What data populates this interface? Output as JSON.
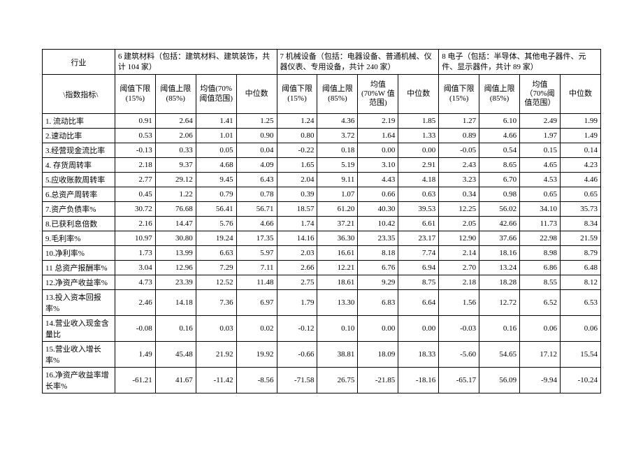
{
  "header": {
    "industry_label": "行业",
    "metric_label": "\\指数指标\\",
    "groups": [
      "6 建筑材料（包括：建筑材料、建筑装饰，共计 104 家）",
      "7 机械设备（包括：电器设备、普通机械、仪器仪表、专用设备，共计 240 家）",
      "8 电子（包括：半导体、其他电子器件、元件、显示器件，共计 89 家）"
    ],
    "subcols": [
      [
        "阈值下限(15%)",
        "阈值上限(85%)",
        "均值(70%阈值范围)",
        "中位数"
      ],
      [
        "阈值下限(15%)",
        "阈值上限(85%)",
        "均值(70%W 值范围)",
        "中位数"
      ],
      [
        "阈值下限(15%)",
        "阈值上限(85%)",
        "均值（70%阈值范围）",
        "中位数"
      ]
    ]
  },
  "rows": [
    {
      "label": "1. 流动比率",
      "v": [
        "0.91",
        "2.64",
        "1.41",
        "1.25",
        "1.24",
        "4.36",
        "2.19",
        "1.85",
        "1.27",
        "6.10",
        "2.49",
        "1.99"
      ]
    },
    {
      "label": "2.速动比率",
      "v": [
        "0.53",
        "2.06",
        "1.01",
        "0.90",
        "0.80",
        "3.72",
        "1.64",
        "1.33",
        "0.89",
        "4.66",
        "1.97",
        "1.49"
      ]
    },
    {
      "label": "3.经营现金流比率",
      "v": [
        "-0.13",
        "0.33",
        "0.05",
        "0.04",
        "-0.22",
        "0.18",
        "0.00",
        "0.00",
        "-0.05",
        "0.54",
        "0.15",
        "0.14"
      ]
    },
    {
      "label": "4. 存货周转率",
      "v": [
        "2.18",
        "9.37",
        "4.68",
        "4.09",
        "1.65",
        "5.19",
        "3.10",
        "2.91",
        "2.43",
        "8.65",
        "4.65",
        "4.23"
      ]
    },
    {
      "label": "5.应收账款周转率",
      "v": [
        "2.77",
        "29.12",
        "9.45",
        "6.43",
        "2.04",
        "9.11",
        "4.43",
        "4.18",
        "3.23",
        "6.70",
        "4.53",
        "4.46"
      ]
    },
    {
      "label": "6.总资产周转率",
      "v": [
        "0.45",
        "1.22",
        "0.79",
        "0.78",
        "0.39",
        "1.07",
        "0.66",
        "0.63",
        "0.34",
        "0.98",
        "0.65",
        "0.65"
      ]
    },
    {
      "label": "7.资产负债率%",
      "v": [
        "30.72",
        "76.68",
        "56.41",
        "56.71",
        "18.57",
        "61.20",
        "40.30",
        "39.53",
        "12.25",
        "56.02",
        "34.10",
        "35.73"
      ]
    },
    {
      "label": "8.已获利息倍数",
      "v": [
        "2.16",
        "14.47",
        "5.76",
        "4.66",
        "1.74",
        "37.21",
        "10.42",
        "6.61",
        "2.05",
        "42.66",
        "11.73",
        "8.34"
      ]
    },
    {
      "label": "9.毛利率%",
      "v": [
        "10.97",
        "30.80",
        "19.24",
        "17.35",
        "14.16",
        "36.30",
        "23.35",
        "23.17",
        "12.90",
        "37.66",
        "22.98",
        "21.59"
      ]
    },
    {
      "label": "10.净利率%",
      "v": [
        "1.73",
        "13.99",
        "6.63",
        "5.97",
        "2.03",
        "16.61",
        "8.18",
        "7.74",
        "2.14",
        "18.16",
        "8.98",
        "8.79"
      ]
    },
    {
      "label": "11 总资产报酬率%",
      "v": [
        "3.04",
        "12.96",
        "7.29",
        "7.11",
        "2.66",
        "12.21",
        "6.76",
        "6.94",
        "2.70",
        "13.24",
        "6.86",
        "6.48"
      ]
    },
    {
      "label": "12.净资产收益率%",
      "v": [
        "4.73",
        "23.39",
        "12.52",
        "11.48",
        "2.75",
        "18.61",
        "9.29",
        "8.75",
        "2.18",
        "18.28",
        "8.55",
        "8.12"
      ]
    },
    {
      "label": "13.投入资本回报率%",
      "v": [
        "2.46",
        "14.18",
        "7.36",
        "6.97",
        "1.79",
        "13.30",
        "6.83",
        "6.64",
        "1.56",
        "12.72",
        "6.52",
        "6.53"
      ]
    },
    {
      "label": "14.营业收入现金含量比",
      "v": [
        "-0.08",
        "0.16",
        "0.03",
        "0.02",
        "-0.12",
        "0.10",
        "0.00",
        "0.00",
        "-0.03",
        "0.16",
        "0.06",
        "0.06"
      ]
    },
    {
      "label": "15.营业收入增长率%",
      "v": [
        "1.49",
        "45.48",
        "21.92",
        "19.92",
        "-0.66",
        "38.81",
        "18.09",
        "18.33",
        "-5.60",
        "54.65",
        "17.12",
        "15.54"
      ]
    },
    {
      "label": "16.净资产收益率增长率%",
      "v": [
        "-61.21",
        "41.67",
        "-11.42",
        "-8.56",
        "-71.58",
        "26.75",
        "-21.85",
        "-18.16",
        "-65.17",
        "56.09",
        "-9.94",
        "-10.24"
      ]
    }
  ]
}
